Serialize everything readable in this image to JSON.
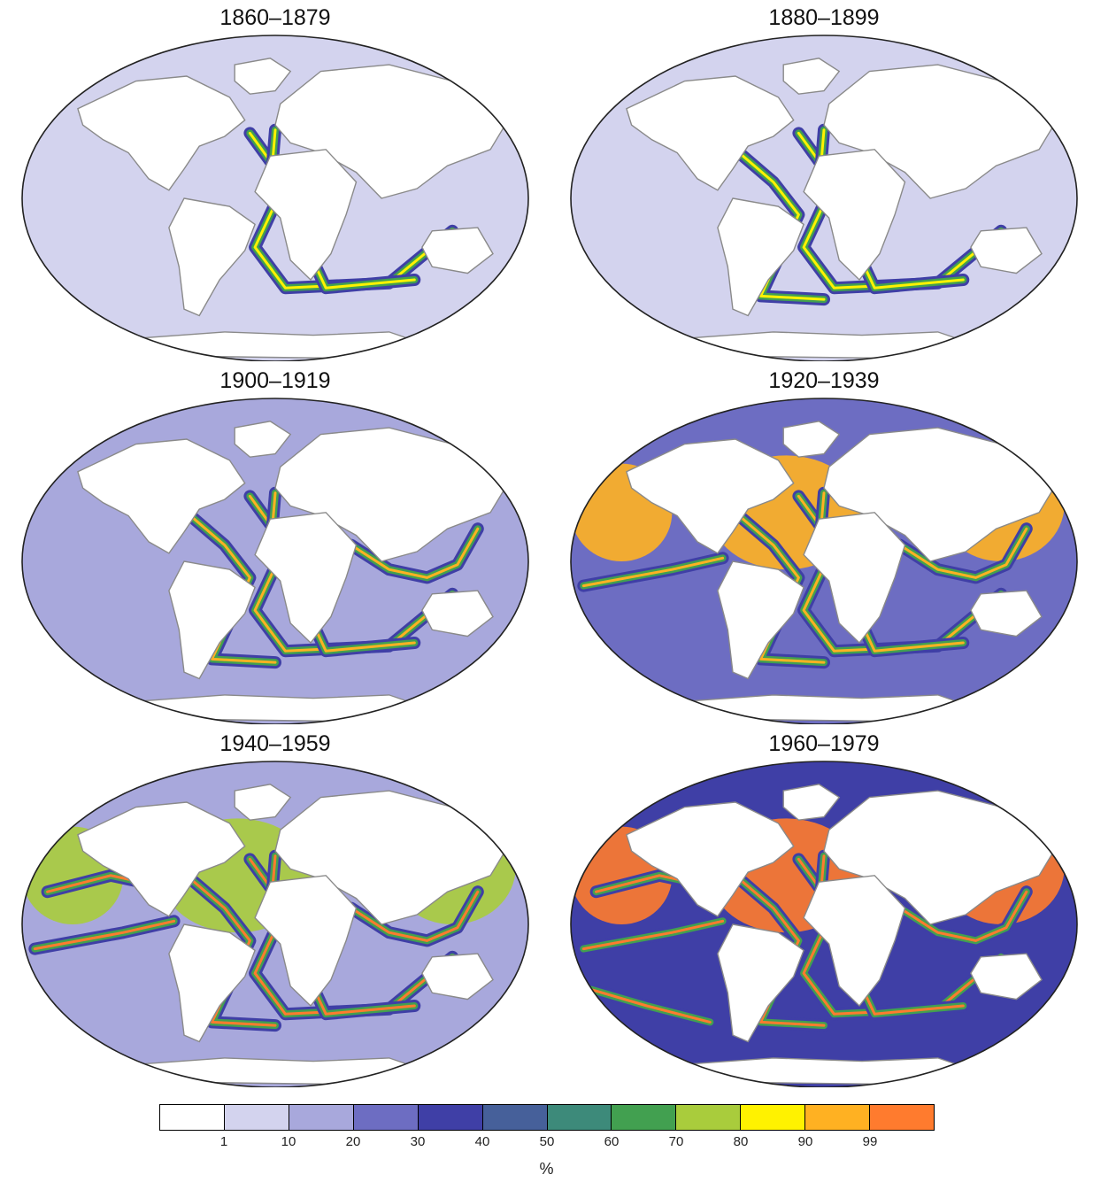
{
  "panels": [
    {
      "title": "1860–1879",
      "intensity": 0
    },
    {
      "title": "1880–1899",
      "intensity": 1
    },
    {
      "title": "1900–1919",
      "intensity": 2
    },
    {
      "title": "1920–1939",
      "intensity": 3
    },
    {
      "title": "1940–1959",
      "intensity": 4
    },
    {
      "title": "1960–1979",
      "intensity": 5
    }
  ],
  "legend": {
    "colors": [
      "#ffffff",
      "#d3d3ee",
      "#a8a8dc",
      "#6d6dc2",
      "#3f3fa6",
      "#46609a",
      "#3d8a7a",
      "#42a050",
      "#a9cc3c",
      "#fff200",
      "#ffb122",
      "#ff7b2e"
    ],
    "ticks": [
      "1",
      "10",
      "20",
      "30",
      "40",
      "50",
      "60",
      "70",
      "80",
      "90",
      "99"
    ],
    "unit": "%"
  }
}
